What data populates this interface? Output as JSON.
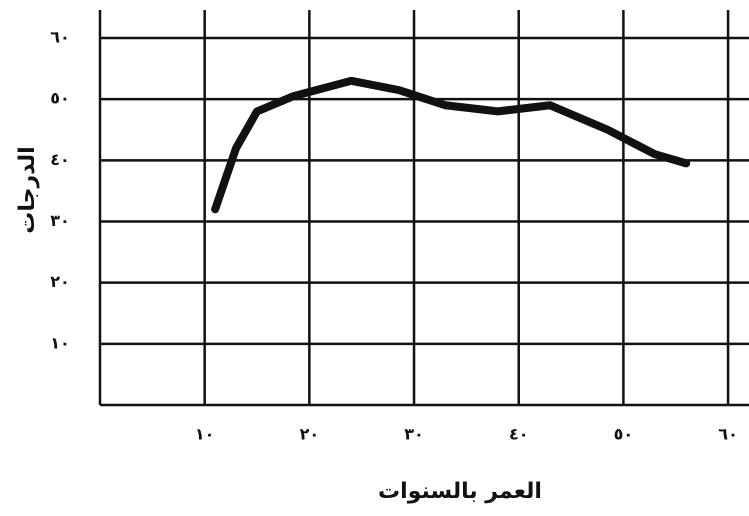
{
  "chart_data": {
    "type": "line",
    "x_label": "العمر بالسنوات",
    "y_label": "الدرجات",
    "x": [
      11,
      13,
      15,
      18.5,
      24,
      28.5,
      33,
      38,
      43,
      48.5,
      53,
      56
    ],
    "series": [
      {
        "color": "#111111",
        "values": [
          32,
          42,
          48,
          50.5,
          53,
          51.5,
          49,
          48,
          49,
          45,
          41,
          39.5
        ]
      }
    ],
    "xlim": [
      0,
      62
    ],
    "ylim": [
      0,
      60
    ],
    "xticks": [
      {
        "value": 10,
        "label": "١٠"
      },
      {
        "value": 20,
        "label": "٢٠"
      },
      {
        "value": 30,
        "label": "٣٠"
      },
      {
        "value": 40,
        "label": "٤٠"
      },
      {
        "value": 50,
        "label": "٥٠"
      },
      {
        "value": 60,
        "label": "٦٠"
      }
    ],
    "yticks": [
      {
        "value": 10,
        "label": "١٠"
      },
      {
        "value": 20,
        "label": "٢٠"
      },
      {
        "value": 30,
        "label": "٣٠"
      },
      {
        "value": 40,
        "label": "٤٠"
      },
      {
        "value": 50,
        "label": "٥٠"
      },
      {
        "value": 60,
        "label": "٦٠"
      }
    ],
    "grid": true
  }
}
